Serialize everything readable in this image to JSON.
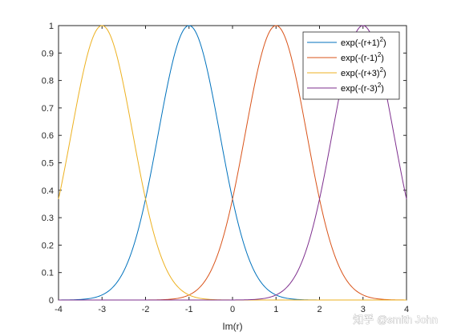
{
  "chart_data": {
    "type": "line",
    "xlabel": "Im(r)",
    "ylabel": "",
    "xlim": [
      -4,
      4
    ],
    "ylim": [
      0,
      1
    ],
    "xticks": [
      -4,
      -3,
      -2,
      -1,
      0,
      1,
      2,
      3,
      4
    ],
    "yticks": [
      0,
      0.1,
      0.2,
      0.3,
      0.4,
      0.5,
      0.6,
      0.7,
      0.8,
      0.9,
      1
    ],
    "x_tick_labels": [
      "-4",
      "-3",
      "-2",
      "-1",
      "0",
      "1",
      "2",
      "3",
      "4"
    ],
    "y_tick_labels": [
      "0",
      "0.1",
      "0.2",
      "0.3",
      "0.4",
      "0.5",
      "0.6",
      "0.7",
      "0.8",
      "0.9",
      "1"
    ],
    "grid": false,
    "legend_position": "top-right",
    "series": [
      {
        "name": "exp(-(r+1)^2)",
        "legend_base": "exp(-(r+1)",
        "legend_exp": "2",
        "legend_tail": ")",
        "color": "#0072BD",
        "x": [
          -4,
          -3.5,
          -3,
          -2.5,
          -2,
          -1.5,
          -1,
          -0.5,
          0,
          0.5,
          1,
          1.5,
          2,
          2.5,
          3,
          3.5,
          4
        ],
        "y": [
          0.0001,
          0.0019,
          0.0183,
          0.1054,
          0.3679,
          0.7788,
          1.0,
          0.7788,
          0.3679,
          0.1054,
          0.0183,
          0.0019,
          0.0001,
          0.0,
          0.0,
          0.0,
          0.0
        ]
      },
      {
        "name": "exp(-(r-1)^2)",
        "legend_base": "exp(-(r-1)",
        "legend_exp": "2",
        "legend_tail": ")",
        "color": "#D95319",
        "x": [
          -4,
          -3.5,
          -3,
          -2.5,
          -2,
          -1.5,
          -1,
          -0.5,
          0,
          0.5,
          1,
          1.5,
          2,
          2.5,
          3,
          3.5,
          4
        ],
        "y": [
          0.0,
          0.0,
          0.0,
          0.0,
          0.0001,
          0.0019,
          0.0183,
          0.1054,
          0.3679,
          0.7788,
          1.0,
          0.7788,
          0.3679,
          0.1054,
          0.0183,
          0.0019,
          0.0001
        ]
      },
      {
        "name": "exp(-(r+3)^2)",
        "legend_base": "exp(-(r+3)",
        "legend_exp": "2",
        "legend_tail": ")",
        "color": "#EDB120",
        "x": [
          -4,
          -3.5,
          -3,
          -2.5,
          -2,
          -1.5,
          -1,
          -0.5,
          0,
          0.5,
          1,
          1.5,
          2,
          2.5,
          3,
          3.5,
          4
        ],
        "y": [
          0.3679,
          0.7788,
          1.0,
          0.7788,
          0.3679,
          0.1054,
          0.0183,
          0.0019,
          0.0001,
          0.0,
          0.0,
          0.0,
          0.0,
          0.0,
          0.0,
          0.0,
          0.0
        ]
      },
      {
        "name": "exp(-(r-3)^2)",
        "legend_base": "exp(-(r-3)",
        "legend_exp": "2",
        "legend_tail": ")",
        "color": "#7E2F8E",
        "x": [
          -4,
          -3.5,
          -3,
          -2.5,
          -2,
          -1.5,
          -1,
          -0.5,
          0,
          0.5,
          1,
          1.5,
          2,
          2.5,
          3,
          3.5,
          4
        ],
        "y": [
          0.0,
          0.0,
          0.0,
          0.0,
          0.0,
          0.0,
          0.0,
          0.0,
          0.0001,
          0.0019,
          0.0183,
          0.1054,
          0.3679,
          0.7788,
          1.0,
          0.7788,
          0.3679
        ]
      }
    ]
  },
  "watermark": {
    "text": "知乎 @smith John"
  },
  "colors": {
    "axis": "#262626",
    "background": "#ffffff"
  }
}
